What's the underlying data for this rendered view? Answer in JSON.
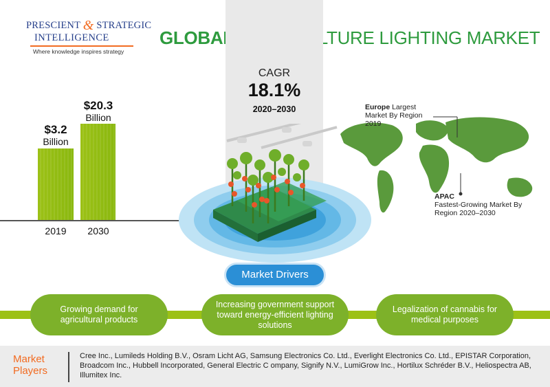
{
  "logo": {
    "line1_a": "PRESCIENT",
    "amp": "&",
    "line1_b": "STRATEGIC",
    "line2": "INTELLIGENCE",
    "tagline": "Where knowledge inspires strategy"
  },
  "title": {
    "bold": "GLOBAL",
    "rest": " HORTICULTURE LIGHTING MARKET"
  },
  "cagr": {
    "label": "CAGR",
    "value": "18.1%",
    "period": "2020–2030"
  },
  "bars": [
    {
      "year": "2019",
      "value_label": "$3.2",
      "unit": "Billion",
      "value": 3.2
    },
    {
      "year": "2030",
      "value_label": "$20.3",
      "unit": "Billion",
      "value": 20.3
    }
  ],
  "map": {
    "europe": {
      "region": "Europe",
      "text": " Largest Market By Region 2019"
    },
    "apac": {
      "region": "APAC",
      "text": "Fastest-Growing Market By Region 2020–2030"
    }
  },
  "drivers": {
    "label": "Market Drivers",
    "items": [
      "Growing demand for agricultural products",
      "Increasing government support toward energy-efficient lighting solutions",
      "Legalization of cannabis for medical purposes"
    ]
  },
  "players": {
    "title": "Market Players",
    "text": "Cree Inc., Lumileds Holding B.V., Osram Licht AG, Samsung Electronics Co. Ltd., Everlight Electronics Co. Ltd., EPISTAR Corporation, Broadcom Inc., Hubbell Incorporated, General Electric C ompany, Signify N.V., LumiGrow Inc., Hortilux Schréder B.V., Heliospectra AB, Illumitex Inc."
  },
  "colors": {
    "brand_green": "#2e9b3e",
    "bar_green": "#9cc116",
    "driver_green": "#7db12a",
    "accent_blue": "#2b8fd6",
    "accent_orange": "#f26b21",
    "logo_blue": "#27408b"
  }
}
